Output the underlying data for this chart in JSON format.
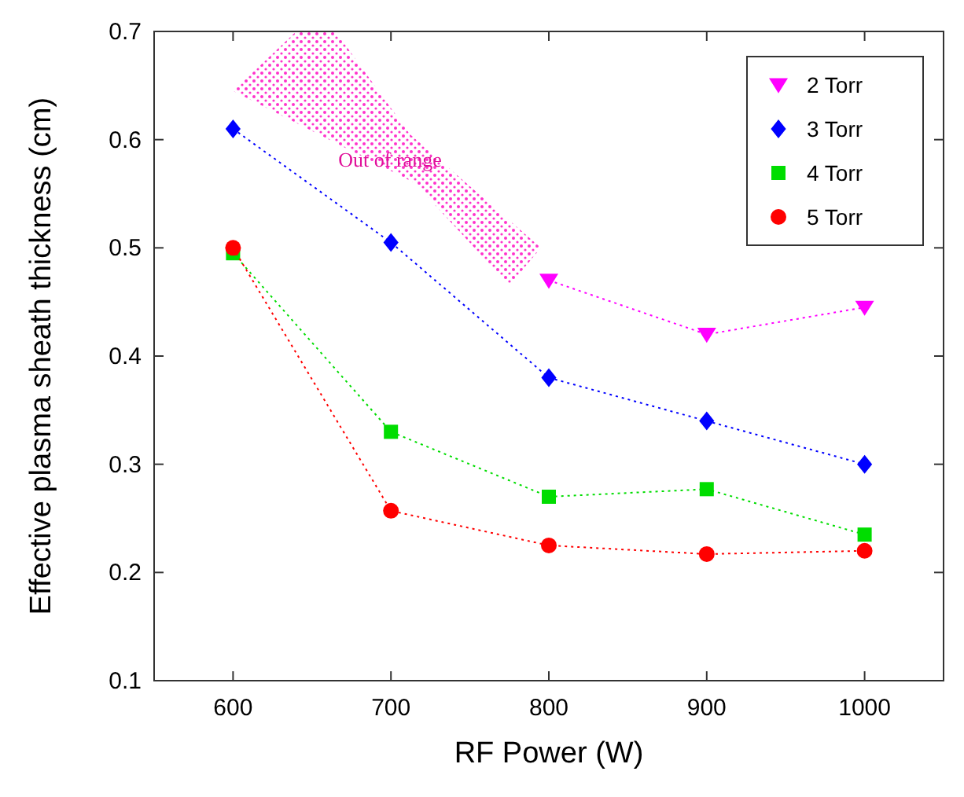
{
  "chart_data": {
    "type": "line",
    "xlabel": "RF Power (W)",
    "ylabel": "Effective plasma sheath thickness (cm)",
    "x": [
      600,
      700,
      800,
      900,
      1000
    ],
    "xlim": [
      550,
      1050
    ],
    "xticks": [
      600,
      700,
      800,
      900,
      1000
    ],
    "ylim": [
      0.1,
      0.7
    ],
    "yticks": [
      0.1,
      0.2,
      0.3,
      0.4,
      0.5,
      0.6,
      0.7
    ],
    "grid": false,
    "legend": "top right",
    "line_style": "dotted",
    "series": [
      {
        "name": "2 Torr",
        "color": "#ff00ff",
        "marker": "triangle",
        "values": [
          null,
          null,
          0.47,
          0.42,
          0.445
        ]
      },
      {
        "name": "3 Torr",
        "color": "#0000ff",
        "marker": "diamond",
        "values": [
          0.61,
          0.505,
          0.38,
          0.34,
          0.3
        ]
      },
      {
        "name": "4 Torr",
        "color": "#00dd00",
        "marker": "square",
        "values": [
          0.495,
          0.33,
          0.27,
          0.277,
          0.235
        ]
      },
      {
        "name": "5 Torr",
        "color": "#ff0000",
        "marker": "circle",
        "values": [
          0.5,
          0.257,
          0.225,
          0.217,
          0.22
        ]
      }
    ],
    "annotations": [
      "Out of range"
    ]
  }
}
